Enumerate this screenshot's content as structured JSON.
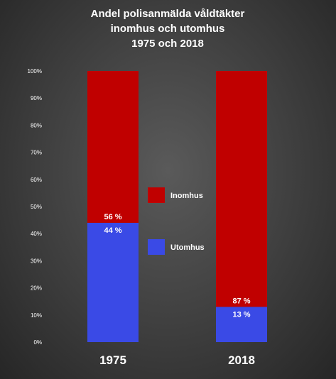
{
  "chart_data": {
    "type": "bar",
    "stacked": true,
    "title": [
      "Andel polisanmälda våldtäkter",
      "inomhus och utomhus",
      "1975 och 2018"
    ],
    "categories": [
      "1975",
      "2018"
    ],
    "series": [
      {
        "name": "Utomhus",
        "values": [
          44,
          13
        ],
        "labels": [
          "44 %",
          "13 %"
        ],
        "color": "#3a4ae6"
      },
      {
        "name": "Inomhus",
        "values": [
          56,
          87
        ],
        "labels": [
          "56 %",
          "87 %"
        ],
        "color": "#c00000"
      }
    ],
    "ylim": [
      0,
      100
    ],
    "yticks": [
      "0%",
      "10%",
      "20%",
      "30%",
      "40%",
      "50%",
      "60%",
      "70%",
      "80%",
      "90%",
      "100%"
    ],
    "grid": false,
    "legend": {
      "position": "center",
      "items": [
        "Inomhus",
        "Utomhus"
      ]
    }
  }
}
